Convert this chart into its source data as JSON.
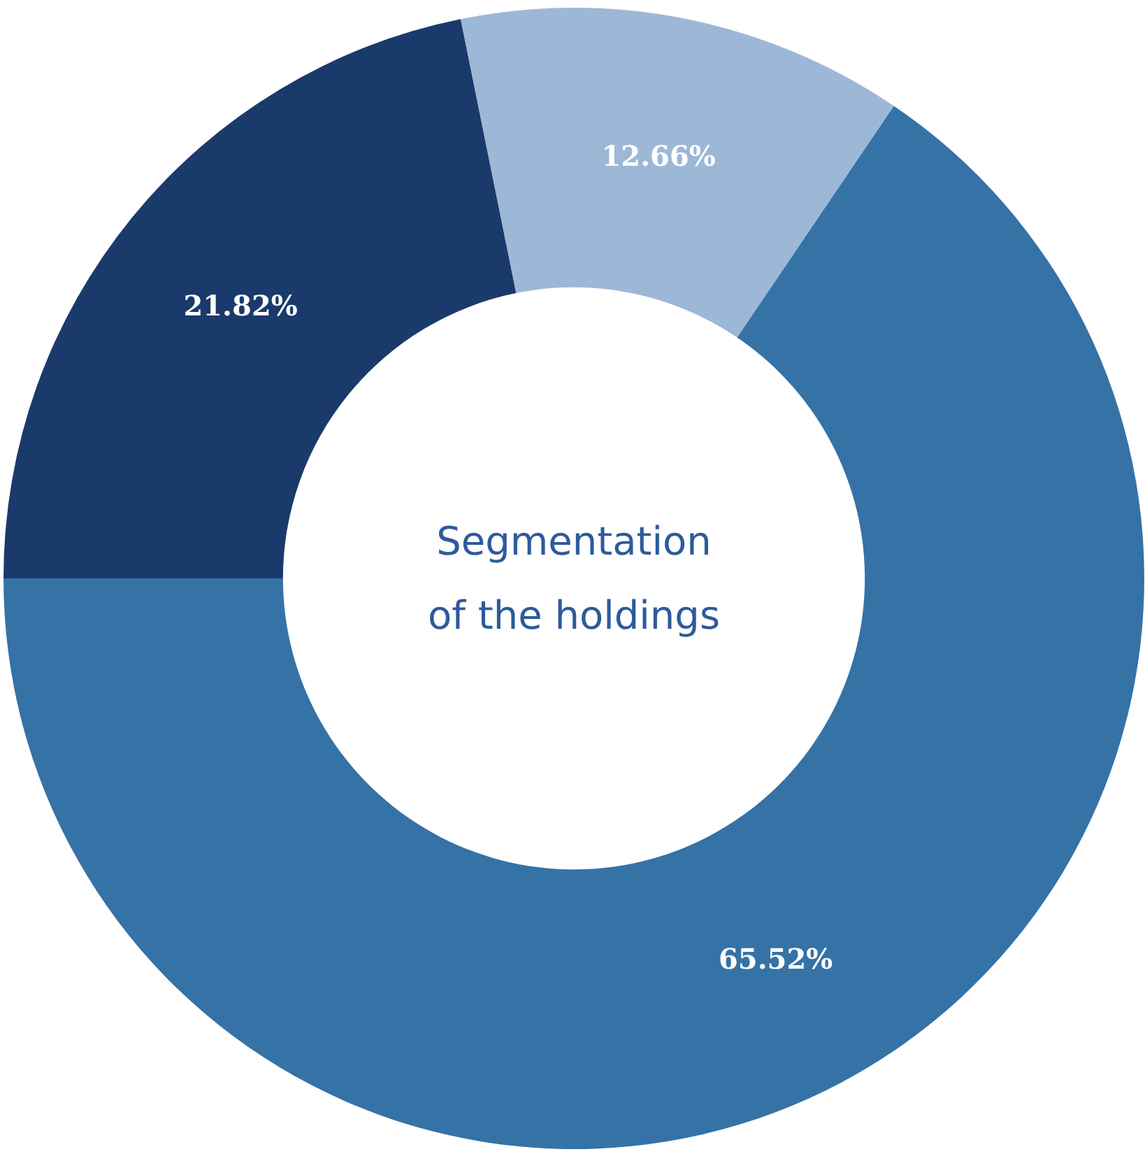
{
  "chart_data": {
    "type": "donut",
    "title": "Segmentation\nof the holdings",
    "categories": [
      null,
      null,
      null
    ],
    "values": [
      21.82,
      12.66,
      65.52
    ],
    "colors": [
      "#1a3a6b",
      "#9db8d6",
      "#3572a6"
    ],
    "value_labels": [
      "21.82%",
      "12.66%",
      "65.52%"
    ]
  }
}
